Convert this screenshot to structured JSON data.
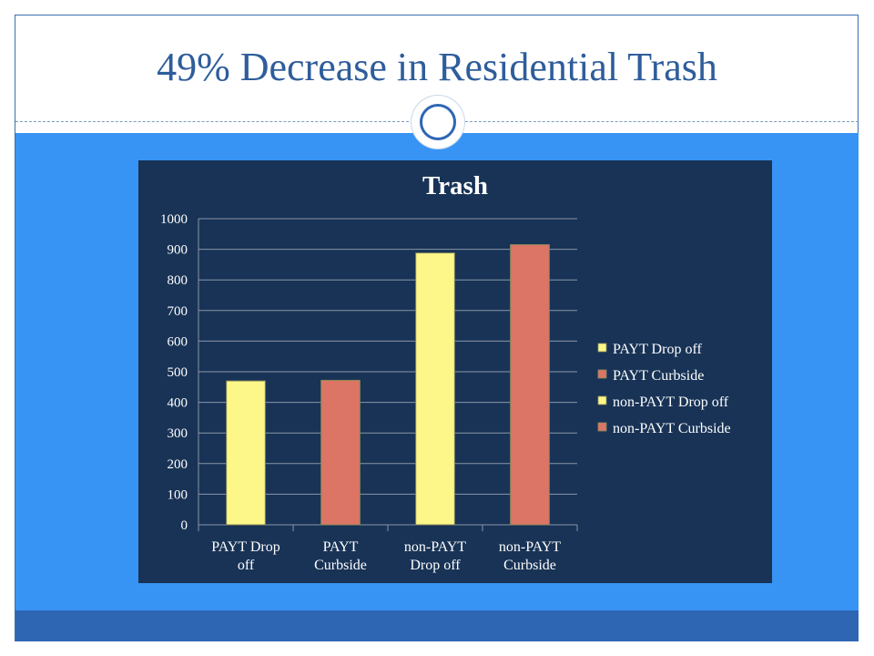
{
  "slide": {
    "title": "49% Decrease in Residential Trash",
    "colors": {
      "title": "#2e5d9b",
      "content_bg": "#3794f4",
      "footer_bg": "#2e66b4",
      "chart_bg": "#183356"
    },
    "decoration": "circle-divider-icon"
  },
  "chart_data": {
    "type": "bar",
    "title": "Trash",
    "xlabel": "",
    "ylabel": "",
    "ylim": [
      0,
      1000
    ],
    "yticks": [
      0,
      100,
      200,
      300,
      400,
      500,
      600,
      700,
      800,
      900,
      1000
    ],
    "grid": true,
    "legend_position": "right",
    "categories": [
      "PAYT Drop off",
      "PAYT Curbside",
      "non-PAYT Drop off",
      "non-PAYT Curbside"
    ],
    "category_label_lines": [
      [
        "PAYT Drop",
        "off"
      ],
      [
        "PAYT",
        "Curbside"
      ],
      [
        "non-PAYT",
        "Drop off"
      ],
      [
        "non-PAYT",
        "Curbside"
      ]
    ],
    "series": [
      {
        "name": "PAYT Drop off",
        "color": "#fdf78a",
        "category_index": 0,
        "value": 470
      },
      {
        "name": "PAYT Curbside",
        "color": "#dc7565",
        "category_index": 1,
        "value": 472
      },
      {
        "name": "non-PAYT Drop off",
        "color": "#fdf78a",
        "category_index": 2,
        "value": 888
      },
      {
        "name": "non-PAYT Curbside",
        "color": "#dc7565",
        "category_index": 3,
        "value": 915
      }
    ]
  }
}
